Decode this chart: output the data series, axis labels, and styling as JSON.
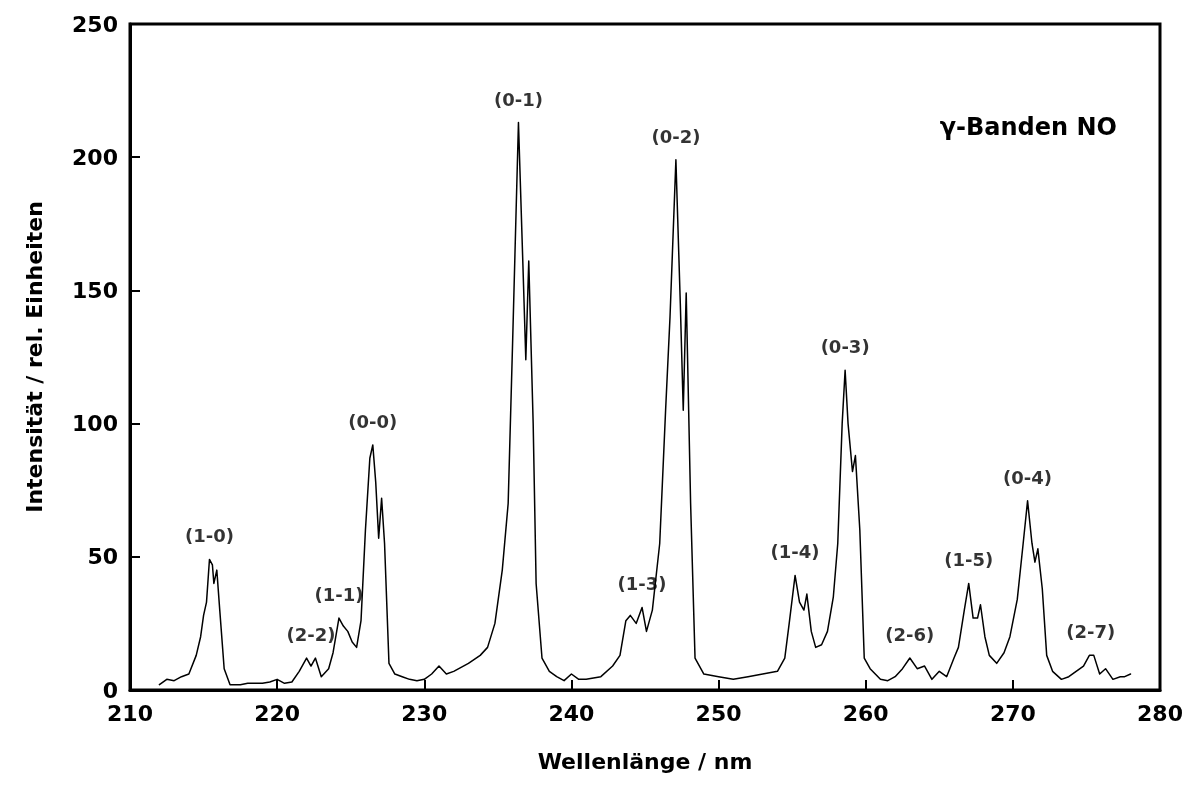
{
  "chart_data": {
    "type": "line",
    "title": "γ-Banden NO",
    "xlabel": "Wellenlänge / nm",
    "ylabel": "Intensität / rel. Einheiten",
    "xlim": [
      210,
      280
    ],
    "xticks": [
      210,
      220,
      230,
      240,
      250,
      260,
      270,
      280
    ],
    "ylim": [
      0,
      250
    ],
    "yticks": [
      0,
      50,
      100,
      150,
      200,
      250
    ],
    "grid": false,
    "marker": "none",
    "line_style": "solid",
    "series": [
      {
        "color": "#000000",
        "x": [
          212.0,
          212.5,
          213,
          213.5,
          214,
          214.5,
          214.8,
          215.0,
          215.2,
          215.4,
          215.6,
          215.7,
          215.9,
          216.1,
          216.4,
          216.8,
          217.5,
          218,
          219,
          219.5,
          220,
          220.5,
          221,
          221.5,
          222,
          222.3,
          222.6,
          223,
          223.5,
          223.8,
          224.2,
          224.5,
          224.8,
          225.1,
          225.4,
          225.7,
          226.0,
          226.3,
          226.5,
          226.7,
          226.9,
          227.1,
          227.3,
          227.6,
          228,
          228.5,
          229,
          229.5,
          230,
          230.5,
          231,
          231.5,
          232,
          233,
          233.8,
          234.3,
          234.8,
          235.3,
          235.7,
          236.0,
          236.4,
          236.7,
          236.9,
          237.1,
          237.4,
          237.6,
          238,
          238.5,
          239,
          239.5,
          240,
          240.5,
          241,
          242,
          242.8,
          243.3,
          243.7,
          244.0,
          244.4,
          244.8,
          245.1,
          245.5,
          246.0,
          246.4,
          246.7,
          247.1,
          247.4,
          247.6,
          247.8,
          248.1,
          248.4,
          249,
          250,
          251,
          252,
          253,
          254,
          254.5,
          254.8,
          255.2,
          255.5,
          255.8,
          256.0,
          256.3,
          256.6,
          257.0,
          257.4,
          257.8,
          258.1,
          258.4,
          258.6,
          258.8,
          259.1,
          259.3,
          259.6,
          259.9,
          260.3,
          261,
          261.5,
          262,
          262.5,
          263,
          263.5,
          264,
          264.5,
          265,
          265.5,
          266,
          266.3,
          266.7,
          267.0,
          267.3,
          267.6,
          267.8,
          268.1,
          268.4,
          268.9,
          269.4,
          269.8,
          270.3,
          270.7,
          271.0,
          271.3,
          271.5,
          271.7,
          272.0,
          272.3,
          272.7,
          273.3,
          273.8,
          274.3,
          274.8,
          275.2,
          275.5,
          275.9,
          276.3,
          276.8,
          277.3,
          277.6,
          278
        ],
        "values": [
          2,
          4,
          3.5,
          5,
          6,
          13,
          20,
          28,
          33,
          49,
          47,
          40,
          45,
          30,
          8,
          2,
          2,
          2.5,
          2.5,
          3,
          4,
          2.5,
          3,
          7,
          12,
          9,
          12,
          5,
          8,
          14,
          27,
          24,
          22,
          18,
          16,
          26,
          60,
          87,
          92,
          78,
          57,
          72,
          55,
          10,
          6,
          5,
          4,
          3.5,
          4,
          6,
          9,
          6,
          7,
          10,
          13,
          16,
          25,
          45,
          70,
          130,
          213,
          160,
          124,
          161,
          100,
          40,
          12,
          7,
          5,
          3.5,
          6,
          4,
          4,
          5,
          9,
          13,
          26,
          28,
          25,
          31,
          22,
          30,
          55,
          105,
          140,
          199,
          145,
          105,
          149,
          70,
          12,
          6,
          5,
          4,
          5,
          6,
          7,
          12,
          25,
          43,
          33,
          30,
          36,
          22,
          16,
          17,
          22,
          35,
          55,
          100,
          120,
          100,
          82,
          88,
          60,
          12,
          8,
          4,
          3.5,
          5,
          8,
          12,
          8,
          9,
          4,
          7,
          5,
          12,
          16,
          30,
          40,
          27,
          27,
          32,
          20,
          13,
          10,
          14,
          20,
          34,
          55,
          71,
          55,
          48,
          53,
          38,
          13,
          7,
          4,
          5,
          7,
          9,
          13,
          13,
          6,
          8,
          4,
          5,
          5,
          6
        ]
      }
    ],
    "annotations": [
      {
        "text": "(1-0)",
        "x": 215.4,
        "y": 49
      },
      {
        "text": "(2-2)",
        "x": 222.3,
        "y": 12
      },
      {
        "text": "(1-1)",
        "x": 224.2,
        "y": 27
      },
      {
        "text": "(0-0)",
        "x": 226.5,
        "y": 92
      },
      {
        "text": "(0-1)",
        "x": 236.4,
        "y": 213
      },
      {
        "text": "(1-3)",
        "x": 244.8,
        "y": 31
      },
      {
        "text": "(0-2)",
        "x": 247.1,
        "y": 199
      },
      {
        "text": "(1-4)",
        "x": 255.2,
        "y": 43
      },
      {
        "text": "(0-3)",
        "x": 258.6,
        "y": 120
      },
      {
        "text": "(2-6)",
        "x": 263,
        "y": 12
      },
      {
        "text": "(1-5)",
        "x": 267,
        "y": 40
      },
      {
        "text": "(0-4)",
        "x": 271,
        "y": 71
      },
      {
        "text": "(2-7)",
        "x": 275.3,
        "y": 13
      }
    ]
  }
}
